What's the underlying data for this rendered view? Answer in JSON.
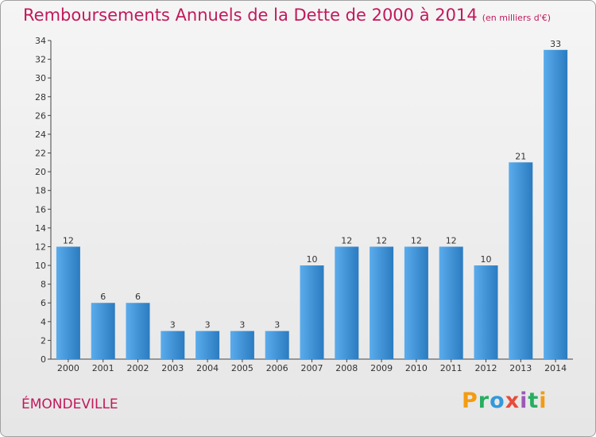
{
  "title": "Remboursements Annuels de la Dette de 2000 à 2014",
  "subtitle": "(en milliers d'€)",
  "commune": "ÉMONDEVILLE",
  "logo": {
    "letters": [
      "P",
      "r",
      "o",
      "x",
      "i",
      "t",
      "i"
    ],
    "colors": [
      "#f39c12",
      "#27ae60",
      "#3498db",
      "#e74c3c",
      "#9b59b6",
      "#27ae60",
      "#f39c12"
    ]
  },
  "colors": {
    "bar": "#3a8fd5",
    "bar_light": "#5aacec",
    "accent": "#c2185b"
  },
  "chart_data": {
    "type": "bar",
    "title": "Remboursements Annuels de la Dette de 2000 à 2014",
    "subtitle": "(en milliers d'€)",
    "categories": [
      "2000",
      "2001",
      "2002",
      "2003",
      "2004",
      "2005",
      "2006",
      "2007",
      "2008",
      "2009",
      "2010",
      "2011",
      "2012",
      "2013",
      "2014"
    ],
    "values": [
      12,
      6,
      6,
      3,
      3,
      3,
      3,
      10,
      12,
      12,
      12,
      12,
      10,
      21,
      33
    ],
    "ylim": [
      0,
      34
    ],
    "yticks": [
      0,
      2,
      4,
      6,
      8,
      10,
      12,
      14,
      16,
      18,
      20,
      22,
      24,
      26,
      28,
      30,
      32,
      34
    ],
    "grid": false,
    "xlabel": "",
    "ylabel": ""
  }
}
